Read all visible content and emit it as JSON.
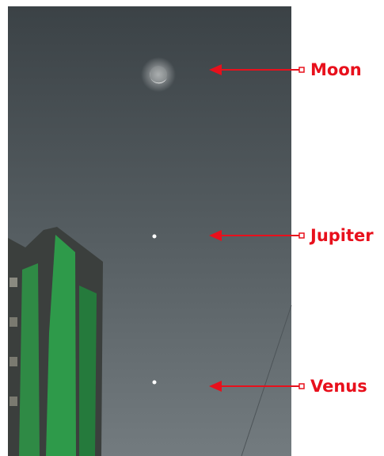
{
  "labels": [
    "Moon",
    "Jupiter",
    "Venus"
  ]
}
